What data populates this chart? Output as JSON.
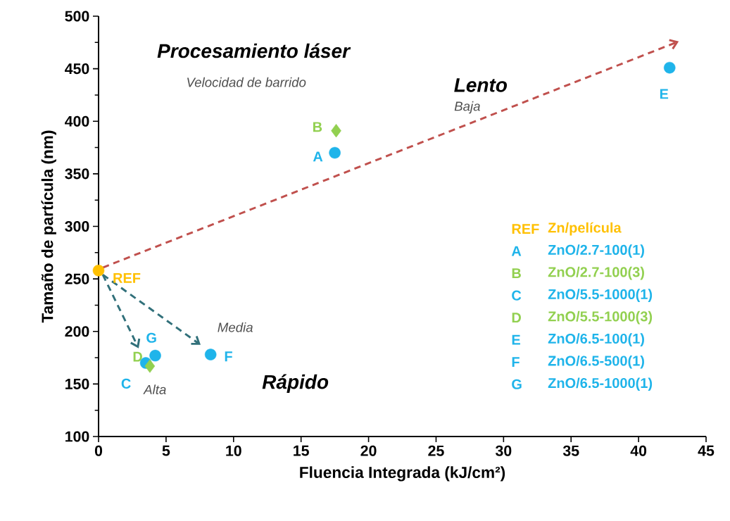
{
  "chart_data": {
    "type": "scatter",
    "xlabel": "Fluencia Integrada  (kJ/cm²)",
    "ylabel": "Tamaño de partícula  (nm)",
    "xlim": [
      0,
      45
    ],
    "ylim": [
      100,
      500
    ],
    "xticks": [
      0,
      5,
      10,
      15,
      20,
      25,
      30,
      35,
      40,
      45
    ],
    "yticks": [
      100,
      150,
      200,
      250,
      300,
      350,
      400,
      450,
      500
    ],
    "legend": "right",
    "grid": false,
    "series": [
      {
        "name": "REF",
        "color": "#ffc000",
        "marker": "circle",
        "x": [
          0
        ],
        "values": [
          258
        ]
      },
      {
        "name": "A",
        "color": "#1fb4ea",
        "marker": "circle",
        "x": [
          17.5
        ],
        "values": [
          370
        ]
      },
      {
        "name": "B",
        "color": "#92d050",
        "marker": "diamond",
        "x": [
          17.6
        ],
        "values": [
          391
        ]
      },
      {
        "name": "C",
        "color": "#1fb4ea",
        "marker": "circle",
        "x": [
          3.5
        ],
        "values": [
          170
        ]
      },
      {
        "name": "D",
        "color": "#92d050",
        "marker": "diamond",
        "x": [
          3.8
        ],
        "values": [
          167
        ]
      },
      {
        "name": "E",
        "color": "#1fb4ea",
        "marker": "circle",
        "x": [
          42.3
        ],
        "values": [
          451
        ]
      },
      {
        "name": "F",
        "color": "#1fb4ea",
        "marker": "circle",
        "x": [
          8.3
        ],
        "values": [
          178
        ]
      },
      {
        "name": "G",
        "color": "#1fb4ea",
        "marker": "circle",
        "x": [
          4.2
        ],
        "values": [
          177
        ]
      }
    ],
    "annotations": [
      "Procesamiento láser",
      "Velocidad de barrido",
      "Lento",
      "Baja",
      "Media",
      "Alta",
      "Rápido",
      "Zn/película",
      "ZnO/2.7-100(1)",
      "ZnO/2.7-100(3)",
      "ZnO/5.5-1000(1)",
      "ZnO/5.5-1000(3)",
      "ZnO/6.5-100(1)",
      "ZnO/6.5-500(1)",
      "ZnO/6.5-1000(1)"
    ]
  }
}
